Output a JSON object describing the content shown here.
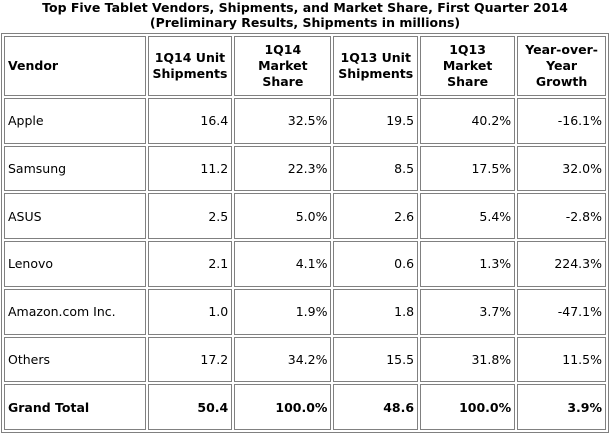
{
  "title": {
    "line1": "Top Five Tablet Vendors, Shipments, and Market Share, First Quarter 2014",
    "line2": "(Preliminary Results, Shipments in millions)"
  },
  "chart_data": {
    "type": "table",
    "columns": [
      "Vendor",
      "1Q14 Unit Shipments",
      "1Q14 Market Share",
      "1Q13 Unit Shipments",
      "1Q13 Market Share",
      "Year-over-Year Growth"
    ],
    "rows": [
      [
        "Apple",
        "16.4",
        "32.5%",
        "19.5",
        "40.2%",
        "-16.1%"
      ],
      [
        "Samsung",
        "11.2",
        "22.3%",
        "8.5",
        "17.5%",
        "32.0%"
      ],
      [
        "ASUS",
        "2.5",
        "5.0%",
        "2.6",
        "5.4%",
        "-2.8%"
      ],
      [
        "Lenovo",
        "2.1",
        "4.1%",
        "0.6",
        "1.3%",
        "224.3%"
      ],
      [
        "Amazon.com Inc.",
        "1.0",
        "1.9%",
        "1.8",
        "3.7%",
        "-47.1%"
      ],
      [
        "Others",
        "17.2",
        "34.2%",
        "15.5",
        "31.8%",
        "11.5%"
      ],
      [
        "Grand Total",
        "50.4",
        "100.0%",
        "48.6",
        "100.0%",
        "3.9%"
      ]
    ]
  }
}
